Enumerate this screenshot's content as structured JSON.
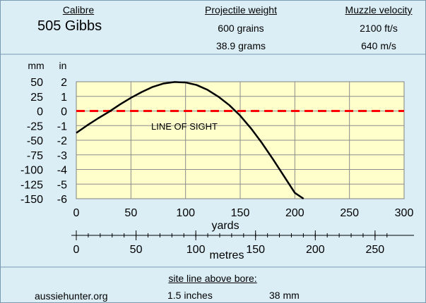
{
  "header": {
    "calibre_label": "Calibre",
    "calibre_value": "505 Gibbs",
    "weight_label": "Projectile weight",
    "weight_grains": "600 grains",
    "weight_grams": "38.9 grams",
    "velocity_label": "Muzzle velocity",
    "velocity_fps": "2100 ft/s",
    "velocity_ms": "640 m/s"
  },
  "chart_data": {
    "type": "line",
    "xlabel": "yards",
    "xlabel_secondary": "metres",
    "ylabel_left": "mm",
    "ylabel_right": "in",
    "xlim": [
      0,
      300
    ],
    "ylim": [
      -6,
      2
    ],
    "x_ticks": [
      "0",
      "50",
      "100",
      "150",
      "200",
      "250",
      "300"
    ],
    "y_ticks_in": [
      "2",
      "1",
      "0",
      "-1",
      "-2",
      "-3",
      "-4",
      "-5",
      "-6"
    ],
    "y_ticks_mm": [
      "50",
      "25",
      "0",
      "-25",
      "-50",
      "-75",
      "-100",
      "-125",
      "-150"
    ],
    "metre_ticks": [
      "0",
      "50",
      "100",
      "150",
      "200",
      "250"
    ],
    "annotation": "LINE OF SIGHT",
    "line_of_sight": 0,
    "grid": true,
    "series": [
      {
        "color": "#000000",
        "x": [
          0,
          10,
          20,
          30,
          40,
          50,
          60,
          70,
          80,
          90,
          100,
          110,
          120,
          130,
          140,
          150,
          160,
          170,
          180,
          190,
          200,
          208
        ],
        "y": [
          -1.5,
          -0.98,
          -0.5,
          -0.05,
          0.45,
          0.9,
          1.3,
          1.65,
          1.88,
          1.98,
          1.95,
          1.78,
          1.45,
          0.98,
          0.4,
          -0.32,
          -1.2,
          -2.2,
          -3.3,
          -4.45,
          -5.6,
          -6.0
        ]
      }
    ],
    "colors": {
      "plot_bg": "#ffffcc",
      "panel_bg": "#dbeef6",
      "line_of_sight": "#ff0000"
    }
  },
  "footer": {
    "site_line_label": "site line above bore:",
    "site_line_inches": "1.5 inches",
    "site_line_mm": "38 mm",
    "website": "aussiehunter.org"
  }
}
